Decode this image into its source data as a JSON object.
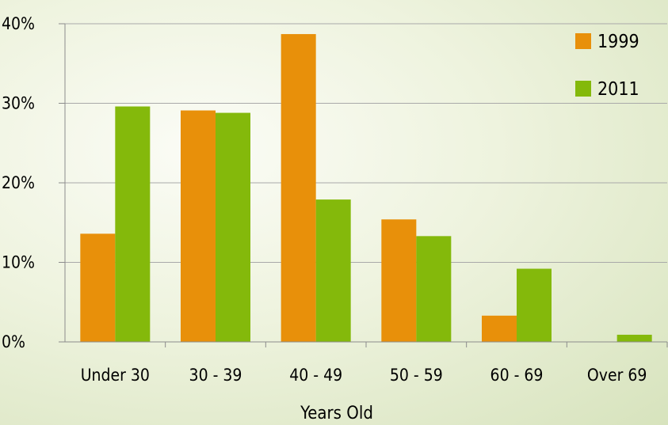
{
  "chart_data": {
    "type": "bar",
    "xlabel": "Years Old",
    "ylabel": "",
    "categories": [
      "Under 30",
      "30 - 39",
      "40 - 49",
      "50 - 59",
      "60 - 69",
      "Over 69"
    ],
    "series": [
      {
        "name": "1999",
        "color": "#e8900a",
        "values": [
          13.6,
          29.1,
          38.7,
          15.4,
          3.3,
          0
        ]
      },
      {
        "name": "2011",
        "color": "#84b90b",
        "values": [
          29.6,
          28.8,
          17.9,
          13.3,
          9.2,
          0.9
        ]
      }
    ],
    "ylim": [
      0,
      40
    ],
    "yticks": [
      "0%",
      "10%",
      "20%",
      "30%",
      "40%"
    ],
    "grid": true,
    "legend_position": "top-right"
  }
}
